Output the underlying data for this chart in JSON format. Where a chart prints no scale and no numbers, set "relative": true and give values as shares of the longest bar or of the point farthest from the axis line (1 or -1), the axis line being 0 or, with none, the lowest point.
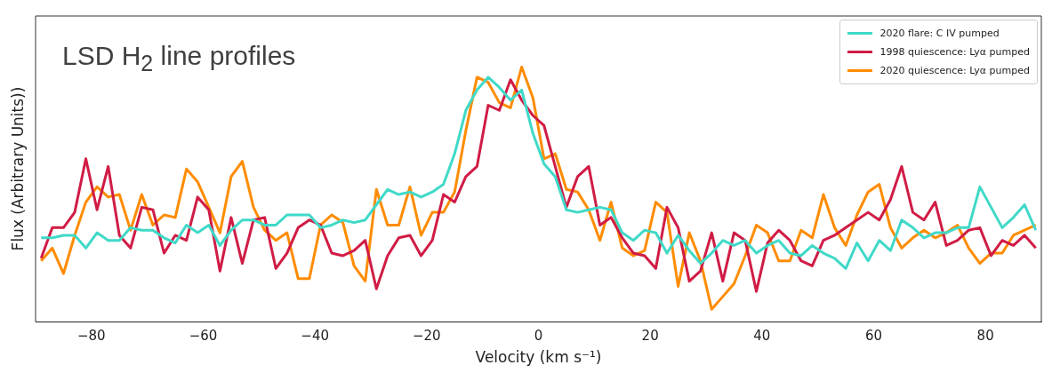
{
  "chart_data": {
    "type": "line",
    "title": "LSD H$_{2}$ line profiles",
    "xlabel": "Velocity (km s⁻¹)",
    "ylabel": "Flux (Arbitrary Units))",
    "relative": true,
    "legend": "top right",
    "line_style": "solid",
    "xlim": [
      -90,
      90
    ],
    "xticks": [
      {
        "value": -80,
        "label": "−80"
      },
      {
        "value": -60,
        "label": "−60"
      },
      {
        "value": -40,
        "label": "−40"
      },
      {
        "value": -20,
        "label": "−20"
      },
      0,
      20,
      40,
      60,
      80
    ],
    "x": [
      -89,
      -87,
      -85,
      -83,
      -81,
      -79,
      -77,
      -75,
      -73,
      -71,
      -69,
      -67,
      -65,
      -63,
      -61,
      -59,
      -57,
      -55,
      -53,
      -51,
      -49,
      -47,
      -45,
      -43,
      -41,
      -39,
      -37,
      -35,
      -33,
      -31,
      -29,
      -27,
      -25,
      -23,
      -21,
      -19,
      -17,
      -15,
      -13,
      -11,
      -9,
      -7,
      -5,
      -3,
      -1,
      1,
      3,
      5,
      7,
      9,
      11,
      13,
      15,
      17,
      19,
      21,
      23,
      25,
      27,
      29,
      31,
      33,
      35,
      37,
      39,
      41,
      43,
      45,
      47,
      49,
      51,
      53,
      55,
      57,
      59,
      61,
      63,
      65,
      67,
      69,
      71,
      73,
      75,
      77,
      79,
      81,
      83,
      85,
      87,
      89
    ],
    "series": [
      {
        "name": "2020 flare: C IV pumped",
        "color": "#40d9c8",
        "values": [
          0.33,
          0.33,
          0.34,
          0.34,
          0.29,
          0.35,
          0.32,
          0.32,
          0.37,
          0.36,
          0.36,
          0.33,
          0.31,
          0.38,
          0.35,
          0.38,
          0.3,
          0.36,
          0.4,
          0.4,
          0.38,
          0.38,
          0.42,
          0.42,
          0.42,
          0.37,
          0.38,
          0.4,
          0.39,
          0.4,
          0.46,
          0.52,
          0.5,
          0.51,
          0.49,
          0.51,
          0.54,
          0.66,
          0.83,
          0.91,
          0.96,
          0.92,
          0.87,
          0.91,
          0.74,
          0.62,
          0.57,
          0.44,
          0.43,
          0.44,
          0.45,
          0.44,
          0.35,
          0.32,
          0.36,
          0.35,
          0.27,
          0.34,
          0.28,
          0.23,
          0.27,
          0.32,
          0.3,
          0.32,
          0.27,
          0.3,
          0.32,
          0.27,
          0.26,
          0.3,
          0.27,
          0.25,
          0.21,
          0.31,
          0.24,
          0.32,
          0.28,
          0.4,
          0.37,
          0.33,
          0.35,
          0.35,
          0.37,
          0.37,
          0.53,
          0.45,
          0.37,
          0.41,
          0.46,
          0.36
        ]
      },
      {
        "name": "1998 quiescence: Lyα pumped",
        "color": "#d01c45",
        "values": [
          0.25,
          0.37,
          0.37,
          0.43,
          0.64,
          0.44,
          0.61,
          0.34,
          0.29,
          0.45,
          0.44,
          0.27,
          0.34,
          0.32,
          0.49,
          0.44,
          0.2,
          0.41,
          0.23,
          0.4,
          0.41,
          0.21,
          0.27,
          0.37,
          0.4,
          0.38,
          0.27,
          0.26,
          0.28,
          0.32,
          0.13,
          0.26,
          0.33,
          0.34,
          0.26,
          0.32,
          0.5,
          0.47,
          0.57,
          0.61,
          0.85,
          0.83,
          0.95,
          0.87,
          0.81,
          0.77,
          0.61,
          0.45,
          0.57,
          0.61,
          0.38,
          0.41,
          0.33,
          0.27,
          0.26,
          0.21,
          0.45,
          0.37,
          0.16,
          0.2,
          0.35,
          0.16,
          0.35,
          0.32,
          0.12,
          0.31,
          0.36,
          0.32,
          0.24,
          0.22,
          0.32,
          0.34,
          0.37,
          0.4,
          0.43,
          0.4,
          0.48,
          0.61,
          0.43,
          0.4,
          0.47,
          0.3,
          0.32,
          0.36,
          0.37,
          0.26,
          0.32,
          0.3,
          0.34,
          0.29
        ]
      },
      {
        "name": "2020 quiescence: Lyα pumped",
        "color": "#ff8c00",
        "values": [
          0.24,
          0.29,
          0.19,
          0.34,
          0.47,
          0.53,
          0.49,
          0.5,
          0.36,
          0.5,
          0.38,
          0.42,
          0.41,
          0.6,
          0.55,
          0.45,
          0.35,
          0.57,
          0.63,
          0.45,
          0.36,
          0.32,
          0.35,
          0.17,
          0.17,
          0.38,
          0.42,
          0.39,
          0.22,
          0.16,
          0.52,
          0.38,
          0.38,
          0.53,
          0.34,
          0.43,
          0.43,
          0.51,
          0.75,
          0.96,
          0.94,
          0.86,
          0.84,
          1,
          0.88,
          0.64,
          0.66,
          0.52,
          0.51,
          0.44,
          0.32,
          0.47,
          0.29,
          0.26,
          0.28,
          0.47,
          0.43,
          0.14,
          0.35,
          0.24,
          0.05,
          0.1,
          0.15,
          0.26,
          0.38,
          0.35,
          0.24,
          0.24,
          0.36,
          0.33,
          0.5,
          0.37,
          0.3,
          0.42,
          0.51,
          0.54,
          0.37,
          0.29,
          0.33,
          0.36,
          0.33,
          0.35,
          0.38,
          0.29,
          0.23,
          0.27,
          0.27,
          0.34,
          0.36,
          0.38
        ]
      }
    ]
  }
}
